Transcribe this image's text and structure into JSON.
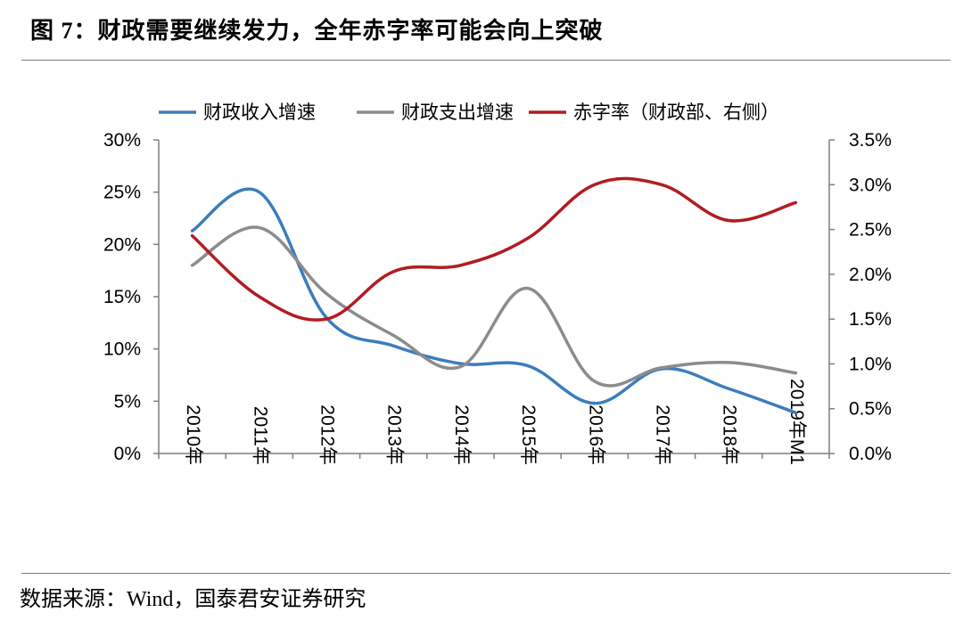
{
  "header": {
    "title": "图 7：财政需要继续发力，全年赤字率可能会向上突破"
  },
  "footer": {
    "source": "数据来源：Wind，国泰君安证券研究"
  },
  "chart_data": {
    "type": "line",
    "categories": [
      "2010年",
      "2011年",
      "2012年",
      "2013年",
      "2014年",
      "2015年",
      "2016年",
      "2017年",
      "2018年",
      "2019年M1"
    ],
    "series": [
      {
        "name": "财政收入增速",
        "axis": "left",
        "color": "#3b7dbd",
        "values": [
          21.3,
          25.0,
          13.0,
          10.3,
          8.6,
          8.4,
          4.8,
          8.1,
          6.2,
          3.9
        ]
      },
      {
        "name": "财政支出增速",
        "axis": "left",
        "color": "#8c8c8c",
        "values": [
          18.0,
          21.6,
          15.3,
          11.3,
          8.3,
          15.8,
          6.9,
          8.2,
          8.7,
          7.7
        ]
      },
      {
        "name": "赤字率（财政部、右侧）",
        "axis": "right",
        "color": "#b01c22",
        "values": [
          2.43,
          1.75,
          1.5,
          2.03,
          2.1,
          2.4,
          3.0,
          3.0,
          2.6,
          2.8
        ]
      }
    ],
    "left_axis": {
      "min": 0,
      "max": 30,
      "ticks": [
        "0%",
        "5%",
        "10%",
        "15%",
        "20%",
        "25%",
        "30%"
      ]
    },
    "right_axis": {
      "min": 0,
      "max": 3.5,
      "ticks": [
        "0.0%",
        "0.5%",
        "1.0%",
        "1.5%",
        "2.0%",
        "2.5%",
        "3.0%",
        "3.5%"
      ]
    },
    "legend": [
      "财政收入增速",
      "财政支出增速",
      "赤字率（财政部、右侧）"
    ],
    "legend_position": "top"
  }
}
